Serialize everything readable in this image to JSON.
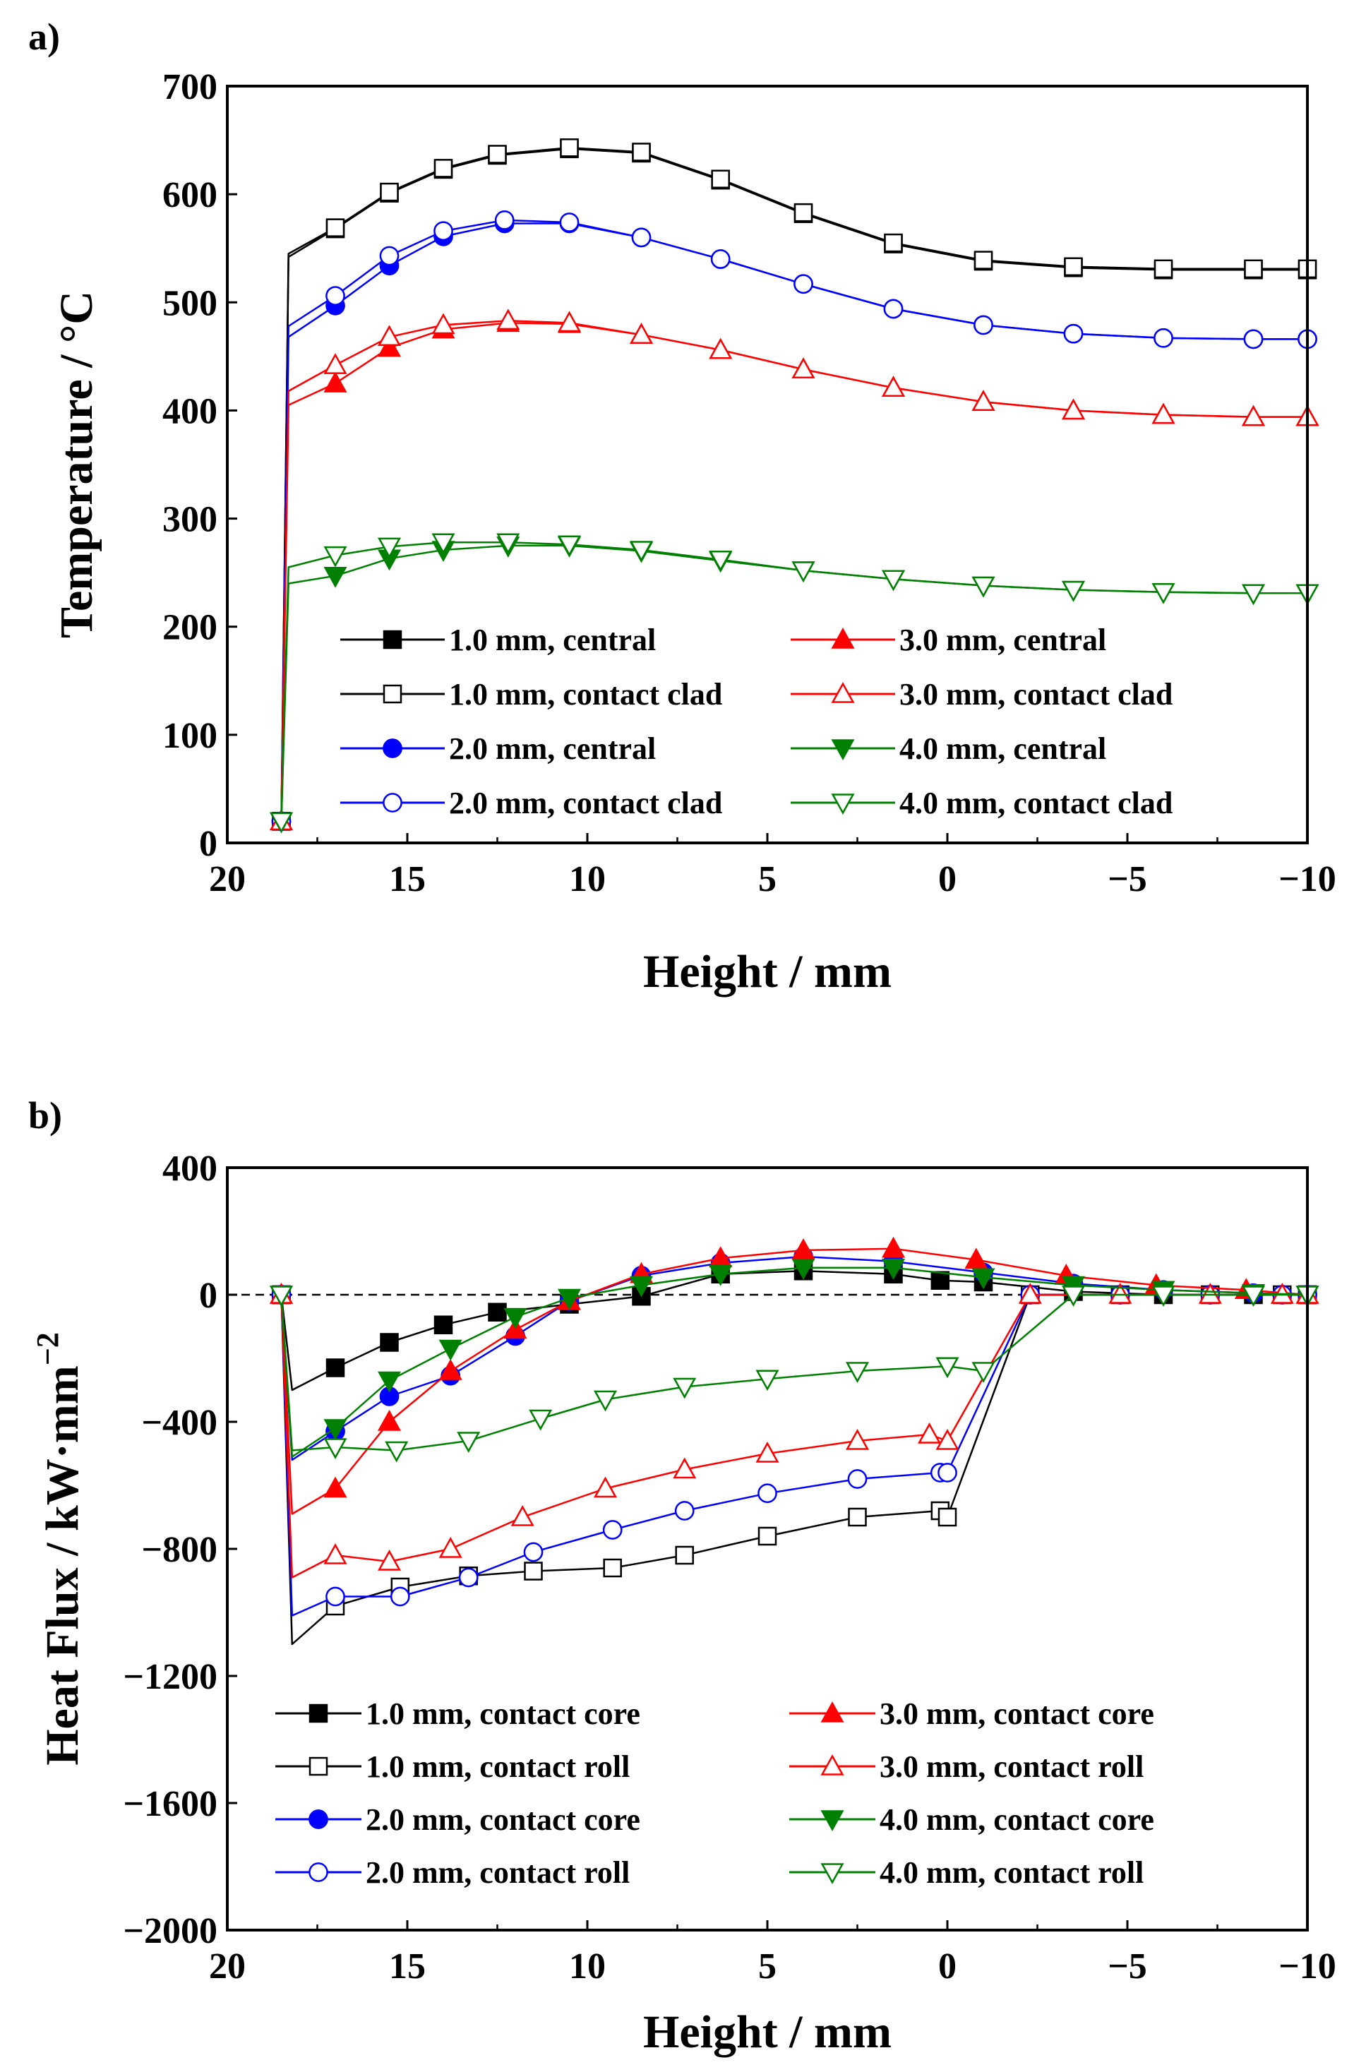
{
  "figure": {
    "panel_a_letter": "a)",
    "panel_b_letter": "b)"
  },
  "chart_data": [
    {
      "type": "line",
      "panel": "a)",
      "title": "",
      "xlabel": "Height / mm",
      "ylabel": "Temperature / °C",
      "xlim": [
        20,
        -10
      ],
      "ylim": [
        0,
        700
      ],
      "xticks": [
        20,
        15,
        10,
        5,
        0,
        -5,
        -10
      ],
      "xtick_labels": [
        "20",
        "15",
        "10",
        "5",
        "0",
        "−5",
        "−10"
      ],
      "yticks": [
        0,
        100,
        200,
        300,
        400,
        500,
        600,
        700
      ],
      "ytick_labels": [
        "0",
        "100",
        "200",
        "300",
        "400",
        "500",
        "600",
        "700"
      ],
      "legend_columns": 2,
      "legend_placement": "bottom",
      "series": [
        {
          "name": "1.0 mm, central",
          "color": "#000000",
          "marker": "square",
          "filled": true,
          "x": [
            18.5,
            18.3,
            17,
            15.5,
            14,
            12.5,
            10.5,
            8.5,
            6.3,
            4,
            1.5,
            -1,
            -3.5,
            -6,
            -8.5,
            -10
          ],
          "y": [
            20,
            542,
            568,
            601,
            623,
            636,
            642,
            638,
            613,
            582,
            554,
            538,
            532,
            530,
            530,
            530
          ]
        },
        {
          "name": "1.0 mm, contact clad",
          "color": "#000000",
          "marker": "square",
          "filled": false,
          "x": [
            18.5,
            18.3,
            17,
            15.5,
            14,
            12.5,
            10.5,
            8.5,
            6.3,
            4,
            1.5,
            -1,
            -3.5,
            -6,
            -8.5,
            -10
          ],
          "y": [
            20,
            545,
            569,
            602,
            624,
            637,
            643,
            639,
            614,
            583,
            555,
            539,
            533,
            531,
            531,
            531
          ]
        },
        {
          "name": "2.0 mm, central",
          "color": "#0000ff",
          "marker": "circle",
          "filled": true,
          "x": [
            18.5,
            18.3,
            17,
            15.5,
            14,
            12.3,
            10.5,
            8.5,
            6.3,
            4,
            1.5,
            -1,
            -3.5,
            -6,
            -8.5,
            -10
          ],
          "y": [
            20,
            468,
            497,
            534,
            561,
            573,
            573,
            560,
            540,
            517,
            494,
            479,
            471,
            467,
            466,
            466
          ]
        },
        {
          "name": "2.0 mm, contact clad",
          "color": "#0000ff",
          "marker": "circle",
          "filled": false,
          "x": [
            18.5,
            18.3,
            17,
            15.5,
            14,
            12.3,
            10.5,
            8.5,
            6.3,
            4,
            1.5,
            -1,
            -3.5,
            -6,
            -8.5,
            -10
          ],
          "y": [
            20,
            478,
            506,
            543,
            566,
            576,
            574,
            560,
            540,
            517,
            494,
            479,
            471,
            467,
            466,
            466
          ]
        },
        {
          "name": "3.0 mm, central",
          "color": "#ff0000",
          "marker": "triangle-up",
          "filled": true,
          "x": [
            18.5,
            18.3,
            17,
            15.5,
            14,
            12.2,
            10.5,
            8.5,
            6.3,
            4,
            1.5,
            -1,
            -3.5,
            -6,
            -8.5,
            -10
          ],
          "y": [
            20,
            405,
            425,
            458,
            475,
            481,
            480,
            470,
            456,
            438,
            421,
            408,
            400,
            396,
            394,
            394
          ]
        },
        {
          "name": "3.0 mm, contact clad",
          "color": "#ff0000",
          "marker": "triangle-up",
          "filled": false,
          "x": [
            18.5,
            18.3,
            17,
            15.5,
            14,
            12.2,
            10.5,
            8.5,
            6.3,
            4,
            1.5,
            -1,
            -3.5,
            -6,
            -8.5,
            -10
          ],
          "y": [
            20,
            418,
            442,
            468,
            479,
            483,
            481,
            470,
            456,
            438,
            421,
            408,
            400,
            396,
            394,
            394
          ]
        },
        {
          "name": "4.0 mm, central",
          "color": "#008000",
          "marker": "triangle-down",
          "filled": true,
          "x": [
            18.5,
            18.3,
            17,
            15.5,
            14,
            12.2,
            10.5,
            8.5,
            6.3,
            4,
            1.5,
            -1,
            -3.5,
            -6,
            -8.5,
            -10
          ],
          "y": [
            20,
            240,
            247,
            263,
            271,
            275,
            275,
            270,
            261,
            252,
            244,
            238,
            234,
            232,
            231,
            231
          ]
        },
        {
          "name": "4.0 mm, contact clad",
          "color": "#008000",
          "marker": "triangle-down",
          "filled": false,
          "x": [
            18.5,
            18.3,
            17,
            15.5,
            14,
            12.2,
            10.5,
            8.5,
            6.3,
            4,
            1.5,
            -1,
            -3.5,
            -6,
            -8.5,
            -10
          ],
          "y": [
            20,
            255,
            266,
            274,
            278,
            278,
            276,
            271,
            262,
            252,
            244,
            238,
            234,
            232,
            231,
            231
          ]
        }
      ]
    },
    {
      "type": "line",
      "panel": "b)",
      "title": "",
      "xlabel": "Height / mm",
      "ylabel": "Heat Flux / kW·mm",
      "ylabel_superscript": "−2",
      "xlim": [
        20,
        -10
      ],
      "ylim": [
        -2000,
        400
      ],
      "xticks": [
        20,
        15,
        10,
        5,
        0,
        -5,
        -10
      ],
      "xtick_labels": [
        "20",
        "15",
        "10",
        "5",
        "0",
        "−5",
        "−10"
      ],
      "yticks": [
        400,
        0,
        -400,
        -800,
        -1200,
        -1600,
        -2000
      ],
      "ytick_labels": [
        "400",
        "0",
        "−400",
        "−800",
        "−1200",
        "−1600",
        "−2000"
      ],
      "zero_reference_line": true,
      "legend_columns": 2,
      "legend_placement": "bottom",
      "series": [
        {
          "name": "1.0 mm, contact core",
          "color": "#000000",
          "marker": "square",
          "filled": true,
          "x": [
            18.5,
            18.2,
            17,
            15.5,
            14,
            12.5,
            10.5,
            8.5,
            6.3,
            4,
            1.5,
            0.2,
            -1,
            -3.5,
            -6,
            -8.5,
            -10
          ],
          "y": [
            0,
            -300,
            -230,
            -150,
            -95,
            -55,
            -30,
            -5,
            65,
            75,
            65,
            45,
            40,
            10,
            0,
            0,
            0
          ]
        },
        {
          "name": "1.0 mm, contact roll",
          "color": "#000000",
          "marker": "square",
          "filled": false,
          "x": [
            18.5,
            18.2,
            17,
            15.2,
            13.3,
            11.5,
            9.3,
            7.3,
            5,
            2.5,
            0.2,
            0,
            -2.3,
            -4.8,
            -7.3,
            -9.3,
            -10
          ],
          "y": [
            0,
            -1100,
            -980,
            -920,
            -885,
            -870,
            -860,
            -820,
            -760,
            -700,
            -680,
            -700,
            0,
            0,
            0,
            0,
            0
          ]
        },
        {
          "name": "2.0 mm, contact core",
          "color": "#0000ff",
          "marker": "circle",
          "filled": true,
          "x": [
            18.5,
            18.2,
            17,
            15.5,
            13.8,
            12,
            10.5,
            8.5,
            6.3,
            4,
            1.5,
            -1,
            -3.5,
            -6,
            -8.5,
            -10
          ],
          "y": [
            0,
            -520,
            -430,
            -320,
            -255,
            -130,
            -20,
            60,
            100,
            120,
            105,
            70,
            35,
            15,
            5,
            0
          ]
        },
        {
          "name": "2.0 mm, contact roll",
          "color": "#0000ff",
          "marker": "circle",
          "filled": false,
          "x": [
            18.5,
            18.2,
            17,
            15.2,
            13.3,
            11.5,
            9.3,
            7.3,
            5,
            2.5,
            0.2,
            0,
            -2.3,
            -4.8,
            -7.3,
            -9.3,
            -10
          ],
          "y": [
            0,
            -1010,
            -950,
            -950,
            -890,
            -810,
            -740,
            -680,
            -625,
            -580,
            -560,
            -560,
            0,
            0,
            0,
            0,
            0
          ]
        },
        {
          "name": "3.0 mm, contact core",
          "color": "#ff0000",
          "marker": "triangle-up",
          "filled": true,
          "x": [
            18.5,
            18.2,
            17,
            15.5,
            13.8,
            12,
            10.5,
            8.5,
            6.3,
            4,
            1.5,
            -0.8,
            -3.3,
            -5.8,
            -8.3,
            -10
          ],
          "y": [
            0,
            -690,
            -610,
            -400,
            -240,
            -110,
            -20,
            65,
            115,
            140,
            145,
            110,
            60,
            30,
            15,
            0
          ]
        },
        {
          "name": "3.0 mm, contact roll",
          "color": "#ff0000",
          "marker": "triangle-up",
          "filled": false,
          "x": [
            18.5,
            18.2,
            17,
            15.5,
            13.8,
            11.8,
            9.5,
            7.3,
            5,
            2.5,
            0.5,
            0,
            -2.3,
            -4.8,
            -7.3,
            -9.3,
            -10
          ],
          "y": [
            0,
            -890,
            -820,
            -840,
            -800,
            -700,
            -610,
            -550,
            -500,
            -460,
            -440,
            -460,
            0,
            0,
            0,
            0,
            0
          ]
        },
        {
          "name": "4.0 mm, contact core",
          "color": "#008000",
          "marker": "triangle-down",
          "filled": true,
          "x": [
            18.5,
            18.2,
            17,
            15.5,
            13.8,
            12,
            10.5,
            8.5,
            6.3,
            4,
            1.5,
            -1,
            -3.5,
            -6,
            -8.5,
            -10
          ],
          "y": [
            0,
            -510,
            -420,
            -270,
            -170,
            -70,
            -10,
            30,
            65,
            85,
            85,
            55,
            30,
            15,
            5,
            0
          ]
        },
        {
          "name": "4.0 mm, contact roll",
          "color": "#008000",
          "marker": "triangle-down",
          "filled": false,
          "x": [
            18.5,
            18.2,
            17,
            15.3,
            13.3,
            11.3,
            9.5,
            7.3,
            5,
            2.5,
            0,
            -1,
            -3.5,
            -6,
            -8.5,
            -10
          ],
          "y": [
            0,
            -490,
            -480,
            -490,
            -460,
            -390,
            -330,
            -290,
            -265,
            -240,
            -225,
            -240,
            0,
            0,
            0,
            0
          ]
        }
      ]
    }
  ]
}
